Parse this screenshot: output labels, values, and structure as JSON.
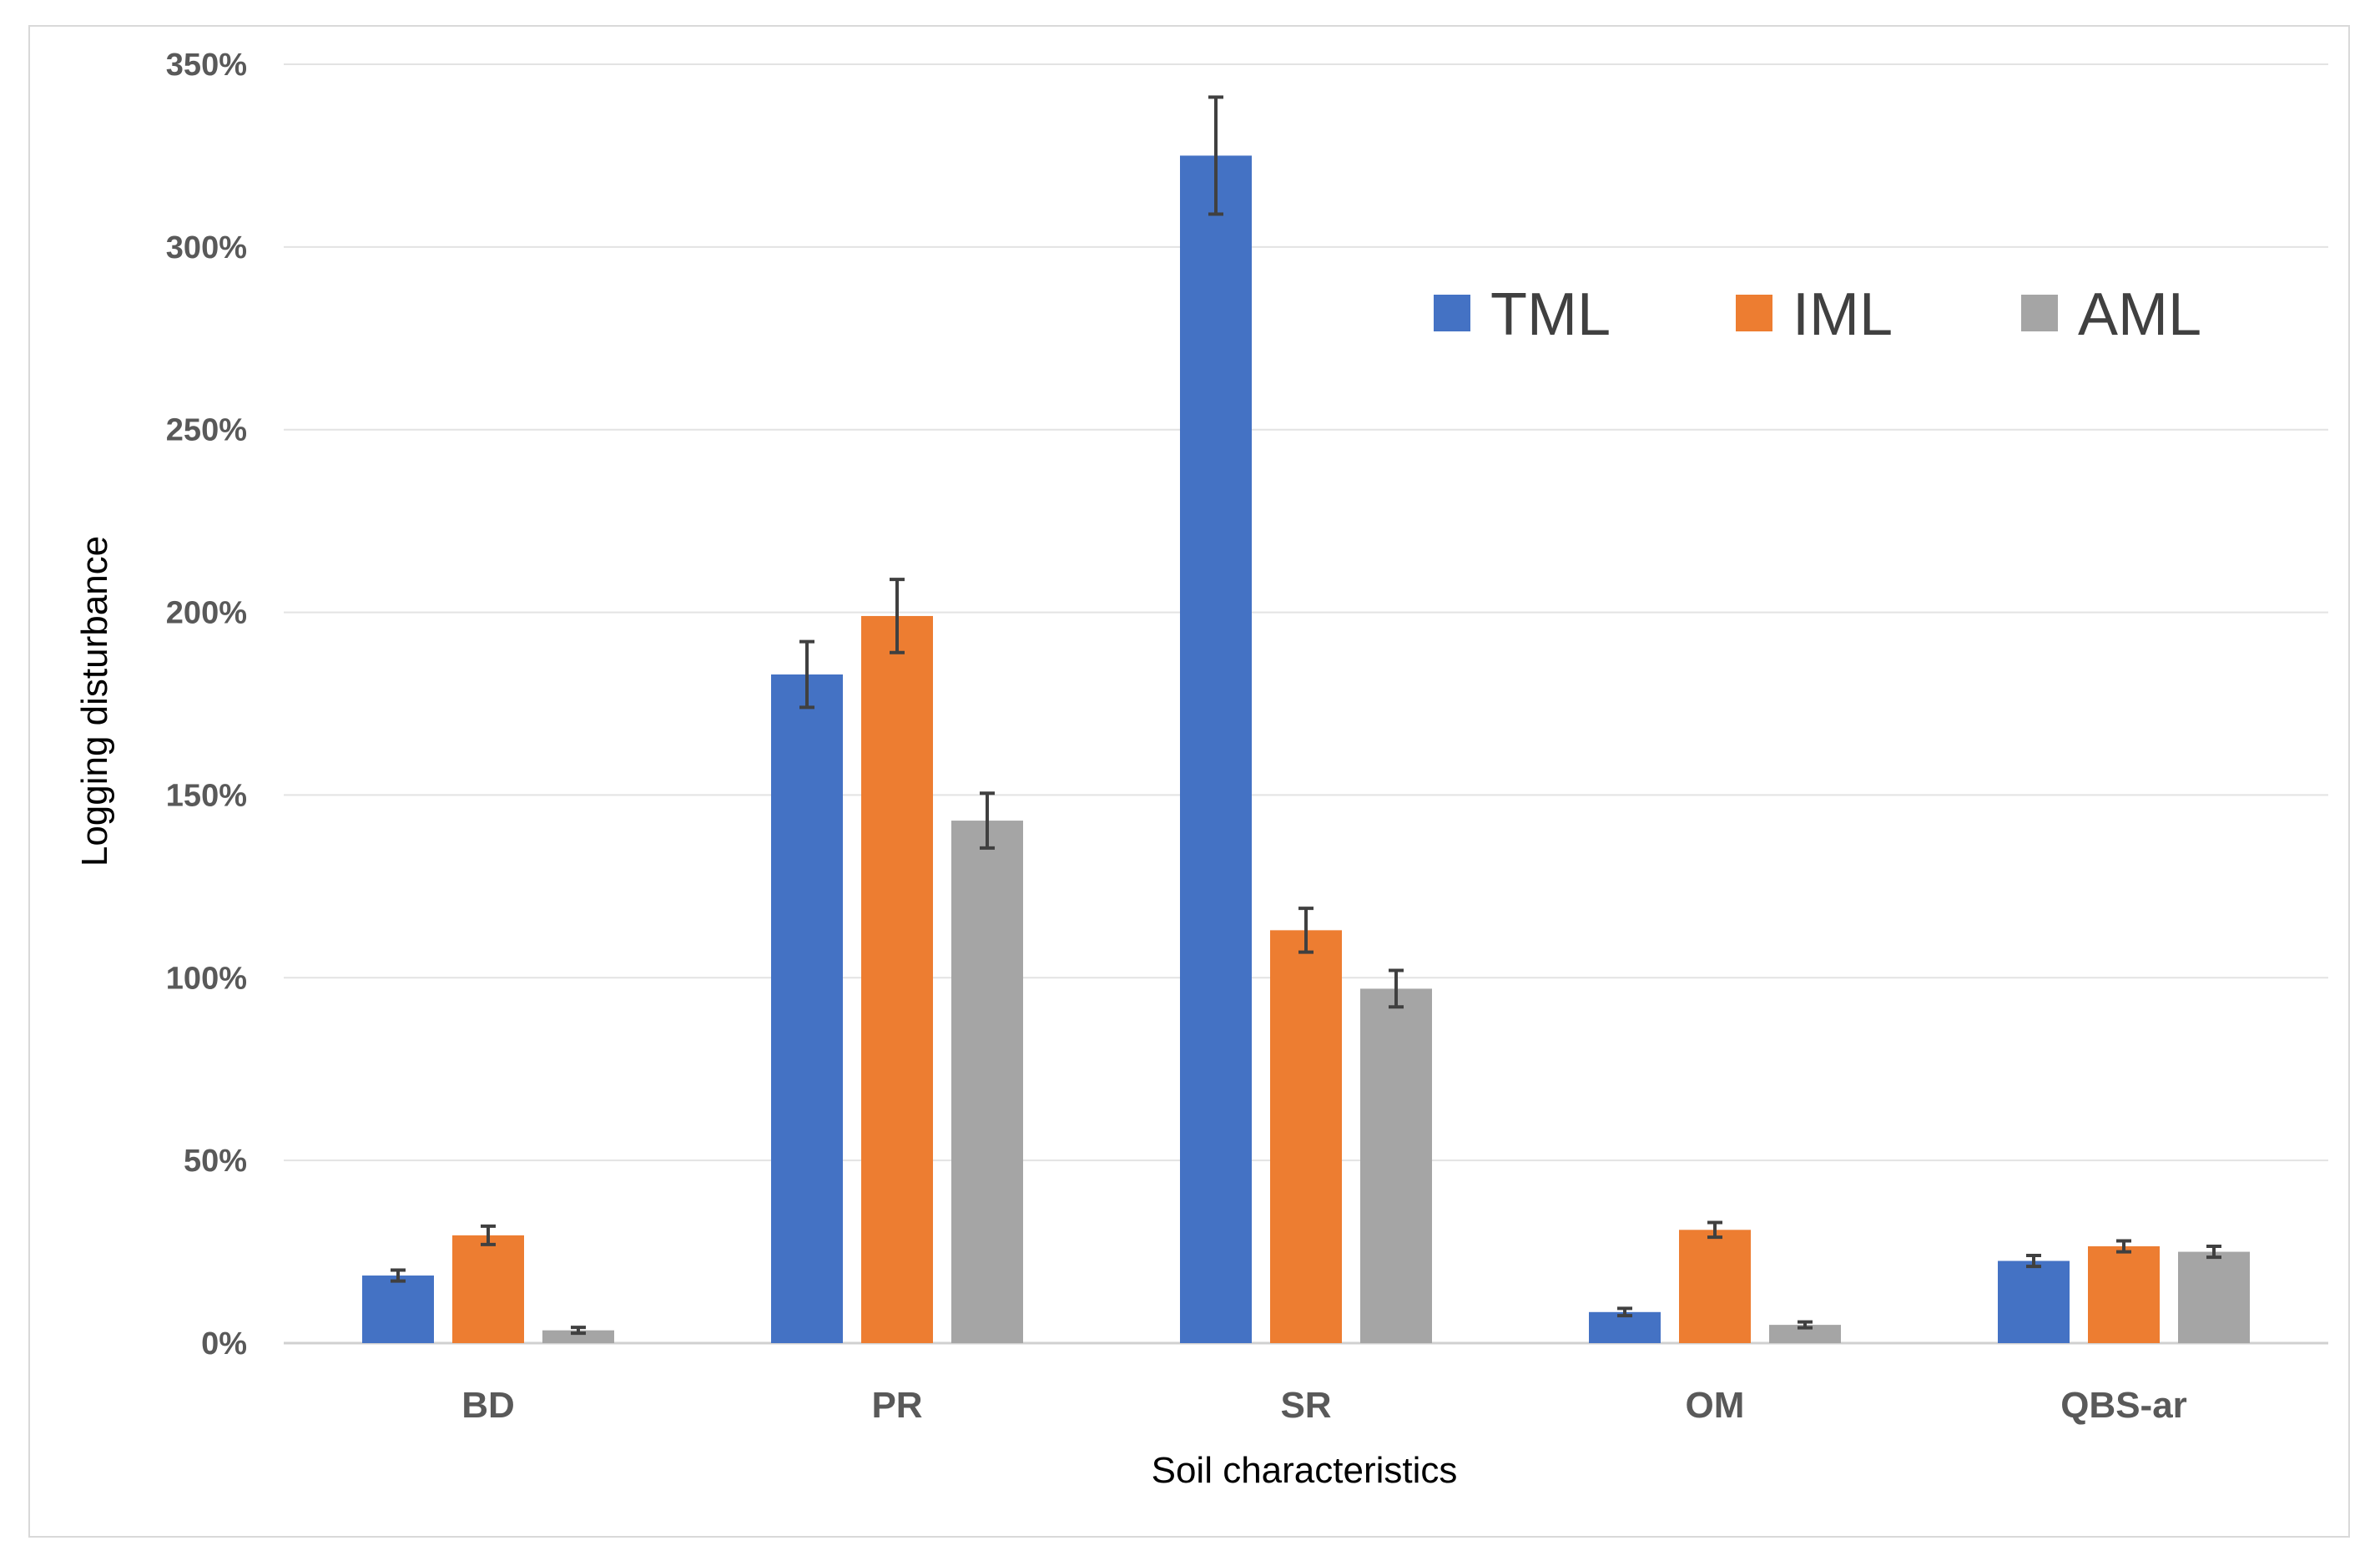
{
  "chart_data": {
    "type": "bar",
    "title": "",
    "xlabel": "Soil characteristics",
    "ylabel": "Logging disturbance",
    "ylim": [
      0,
      350
    ],
    "y_ticks": [
      0,
      50,
      100,
      150,
      200,
      250,
      300,
      350
    ],
    "y_tick_labels": [
      "0%",
      "50%",
      "100%",
      "150%",
      "200%",
      "250%",
      "300%",
      "350%"
    ],
    "grid": true,
    "legend_position": "top-right",
    "categories": [
      "BD",
      "PR",
      "SR",
      "OM",
      "QBS-ar"
    ],
    "series": [
      {
        "name": "TML",
        "color": "#4472C4",
        "values": [
          18.5,
          183,
          325,
          8.5,
          22.5
        ],
        "errors": [
          1.5,
          9,
          16,
          1,
          1.5
        ]
      },
      {
        "name": "IML",
        "color": "#ED7D31",
        "values": [
          29.5,
          199,
          113,
          31,
          26.5
        ],
        "errors": [
          2.5,
          10,
          6,
          2,
          1.5
        ]
      },
      {
        "name": "AML",
        "color": "#A5A5A5",
        "values": [
          3.5,
          143,
          97,
          5,
          25
        ],
        "errors": [
          0.8,
          7.5,
          5,
          0.8,
          1.5
        ]
      }
    ]
  }
}
